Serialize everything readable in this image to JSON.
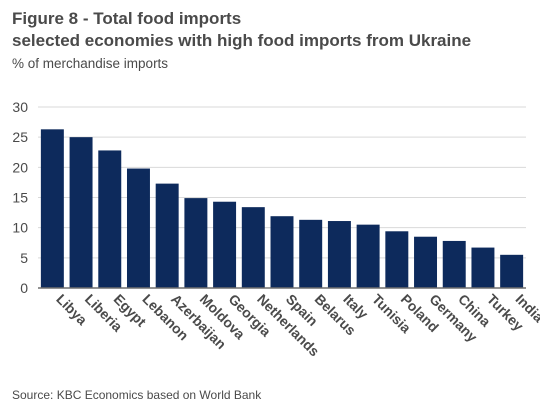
{
  "header": {
    "title_line1": "Figure 8 - Total food imports",
    "title_line2": "selected economies with high food imports from Ukraine",
    "subtitle": "% of merchandise imports"
  },
  "footer": {
    "source": "Source: KBC Economics based on World Bank"
  },
  "chart_data": {
    "type": "bar",
    "title": "Figure 8 - Total food imports selected economies with high food imports from Ukraine",
    "ylabel": "% of merchandise imports",
    "xlabel": "",
    "categories": [
      "Libya",
      "Liberia",
      "Egypt",
      "Lebanon",
      "Azerbaijan",
      "Moldova",
      "Georgia",
      "Netherlands",
      "Spain",
      "Belarus",
      "Italy",
      "Tunisia",
      "Poland",
      "Germany",
      "China",
      "Turkey",
      "India"
    ],
    "values": [
      26.3,
      25.0,
      22.8,
      19.8,
      17.3,
      14.9,
      14.3,
      13.4,
      11.9,
      11.3,
      11.1,
      10.5,
      9.4,
      8.5,
      7.8,
      6.7,
      5.5
    ],
    "ylim": [
      0,
      30
    ],
    "yticks": [
      0,
      5,
      10,
      15,
      20,
      25,
      30
    ],
    "grid": true,
    "legend": "none",
    "bar_color": "#0d2a5c",
    "grid_color": "#d9d9d9",
    "axis_color": "#6e6e6e"
  }
}
